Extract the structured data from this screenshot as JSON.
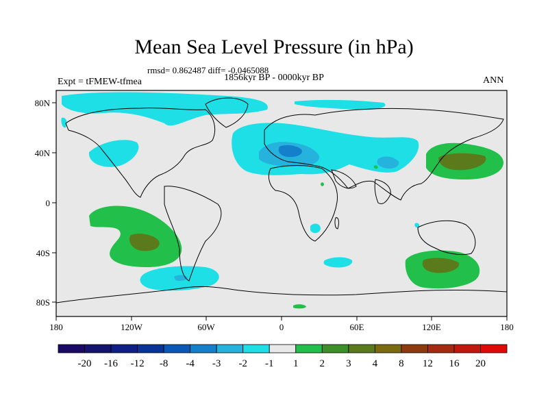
{
  "title": "Mean Sea Level Pressure (in hPa)",
  "stats": "rmsd= 0.862487 diff= -0.0465088",
  "period": "1856kyr BP - 0000kyr BP",
  "experiment": "Expt = tFMEW-tfmea",
  "season": "ANN",
  "x_ticks": [
    "180",
    "120W",
    "60W",
    "0",
    "60E",
    "120E",
    "180"
  ],
  "y_ticks": [
    "80N",
    "40N",
    "0",
    "40S",
    "80S"
  ],
  "colorbar": {
    "labels": [
      "-20",
      "-16",
      "-12",
      "-8",
      "-4",
      "-3",
      "-2",
      "-1",
      "1",
      "2",
      "3",
      "4",
      "8",
      "12",
      "16",
      "20"
    ],
    "colors": [
      "#1a0a66",
      "#14146e",
      "#0f1f85",
      "#0a3399",
      "#0b57b8",
      "#1480cc",
      "#25b3dd",
      "#1fdfe6",
      "#e8e8e8",
      "#22bf4a",
      "#3d8f2a",
      "#5a7a1c",
      "#7a6a10",
      "#8c3a0e",
      "#a52a10",
      "#c0180c",
      "#dd0a08"
    ]
  },
  "colors": {
    "land_bg": "#e8e8e8",
    "light_blue": "#1fdfe6",
    "mid_blue": "#25b3dd",
    "blue": "#1480cc",
    "green": "#22bf4a",
    "dark_green": "#5a7a1c"
  }
}
